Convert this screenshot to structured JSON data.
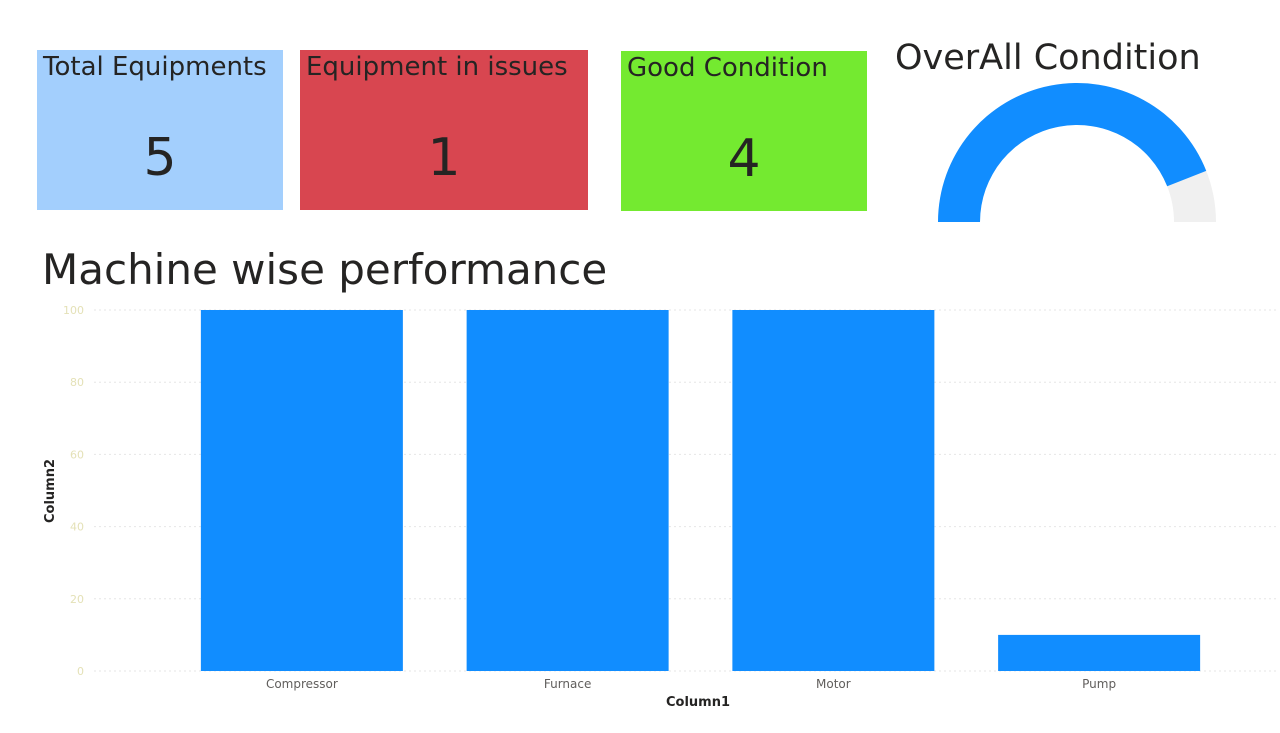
{
  "colors": {
    "card_total": "#a3cffd",
    "card_issues": "#d84650",
    "card_good": "#74ea30",
    "bar": "#118dff",
    "gauge_fill": "#118dff",
    "gauge_track": "#f0f0f0",
    "tick_text": "#e4e1b7",
    "grid": "#e6e6e6"
  },
  "cards": {
    "total": {
      "label": "Total Equipments",
      "value": "5"
    },
    "issues": {
      "label": "Equipment in issues",
      "value": "1"
    },
    "good": {
      "label": "Good Condition",
      "value": "4"
    }
  },
  "gauge": {
    "title": "OverAll Condition",
    "fill_fraction": 0.88
  },
  "chart_title": "Machine wise performance",
  "chart_data": {
    "type": "bar",
    "categories": [
      "Compressor",
      "Furnace",
      "Motor",
      "Pump"
    ],
    "values": [
      100,
      100,
      100,
      10
    ],
    "xlabel": "Column1",
    "ylabel": "Column2",
    "ylim": [
      0,
      100
    ],
    "yticks": [
      0,
      20,
      40,
      60,
      80,
      100
    ],
    "grid": true
  }
}
